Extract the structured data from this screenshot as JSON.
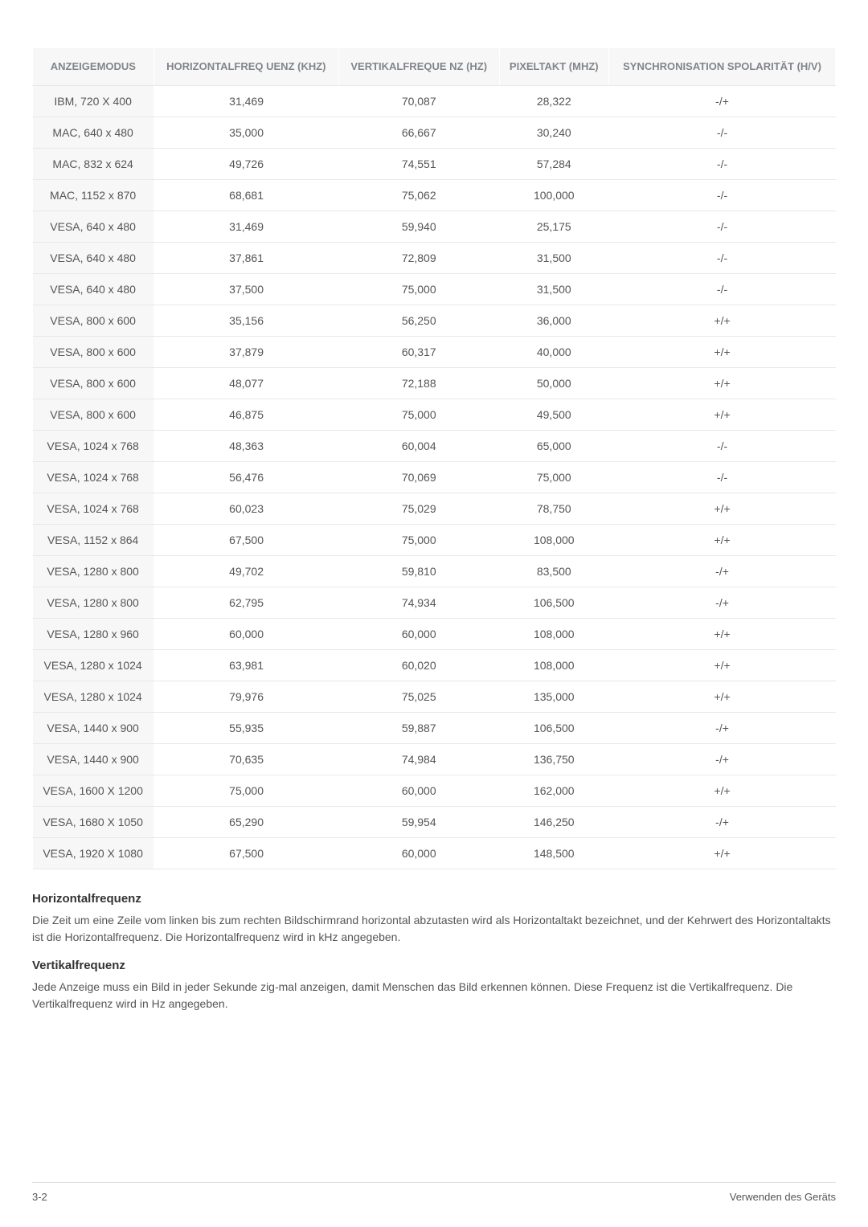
{
  "table": {
    "columns": [
      "ANZEIGEMODUS",
      "HORIZONTALFREQ UENZ (KHZ)",
      "VERTIKALFREQUE NZ (HZ)",
      "PIXELTAKT (MHZ)",
      "SYNCHRONISATION SPOLARITÄT (H/V)"
    ],
    "rows": [
      [
        "IBM, 720 X 400",
        "31,469",
        "70,087",
        "28,322",
        "-/+"
      ],
      [
        "MAC, 640 x 480",
        "35,000",
        "66,667",
        "30,240",
        "-/-"
      ],
      [
        "MAC, 832 x 624",
        "49,726",
        "74,551",
        "57,284",
        "-/-"
      ],
      [
        "MAC, 1152 x 870",
        "68,681",
        "75,062",
        "100,000",
        "-/-"
      ],
      [
        "VESA, 640 x 480",
        "31,469",
        "59,940",
        "25,175",
        "-/-"
      ],
      [
        "VESA, 640 x 480",
        "37,861",
        "72,809",
        "31,500",
        "-/-"
      ],
      [
        "VESA, 640 x 480",
        "37,500",
        "75,000",
        "31,500",
        "-/-"
      ],
      [
        "VESA, 800 x 600",
        "35,156",
        "56,250",
        "36,000",
        "+/+"
      ],
      [
        "VESA, 800 x 600",
        "37,879",
        "60,317",
        "40,000",
        "+/+"
      ],
      [
        "VESA, 800 x 600",
        "48,077",
        "72,188",
        "50,000",
        "+/+"
      ],
      [
        "VESA, 800 x 600",
        "46,875",
        "75,000",
        "49,500",
        "+/+"
      ],
      [
        "VESA, 1024 x 768",
        "48,363",
        "60,004",
        "65,000",
        "-/-"
      ],
      [
        "VESA, 1024 x 768",
        "56,476",
        "70,069",
        "75,000",
        "-/-"
      ],
      [
        "VESA, 1024 x 768",
        "60,023",
        "75,029",
        "78,750",
        "+/+"
      ],
      [
        "VESA, 1152 x 864",
        "67,500",
        "75,000",
        "108,000",
        "+/+"
      ],
      [
        "VESA, 1280 x 800",
        "49,702",
        "59,810",
        "83,500",
        "-/+"
      ],
      [
        "VESA, 1280 x 800",
        "62,795",
        "74,934",
        "106,500",
        "-/+"
      ],
      [
        "VESA, 1280 x 960",
        "60,000",
        "60,000",
        "108,000",
        "+/+"
      ],
      [
        "VESA, 1280 x 1024",
        "63,981",
        "60,020",
        "108,000",
        "+/+"
      ],
      [
        "VESA, 1280 x 1024",
        "79,976",
        "75,025",
        "135,000",
        "+/+"
      ],
      [
        "VESA, 1440 x 900",
        "55,935",
        "59,887",
        "106,500",
        "-/+"
      ],
      [
        "VESA, 1440 x 900",
        "70,635",
        "74,984",
        "136,750",
        "-/+"
      ],
      [
        "VESA, 1600 X 1200",
        "75,000",
        "60,000",
        "162,000",
        "+/+"
      ],
      [
        "VESA, 1680 X 1050",
        "65,290",
        "59,954",
        "146,250",
        "-/+"
      ],
      [
        "VESA, 1920 X 1080",
        "67,500",
        "60,000",
        "148,500",
        "+/+"
      ]
    ]
  },
  "sections": [
    {
      "heading": "Horizontalfrequenz",
      "text": "Die Zeit um eine Zeile vom linken bis zum rechten Bildschirmrand horizontal abzutasten wird als Horizontaltakt bezeichnet, und der Kehrwert des Horizontaltakts ist die Horizontalfrequenz. Die Horizontalfrequenz wird in kHz angegeben."
    },
    {
      "heading": "Vertikalfrequenz",
      "text": "Jede Anzeige muss ein Bild in jeder Sekunde zig-mal anzeigen, damit Menschen das Bild erkennen können. Diese Frequenz ist die Vertikalfrequenz. Die Vertikalfrequenz wird in Hz angegeben."
    }
  ],
  "footer": {
    "left": "3-2",
    "right": "Verwenden des Geräts"
  }
}
